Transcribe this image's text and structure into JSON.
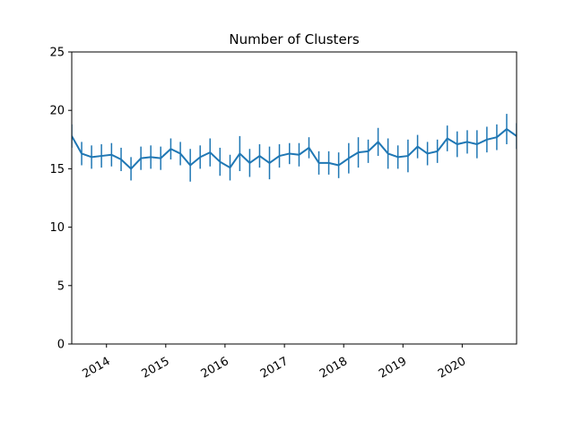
{
  "chart_data": {
    "type": "line",
    "title": "Number of Clusters",
    "xlabel": "",
    "ylabel": "",
    "x_axis": {
      "range": [
        "2013-06-01",
        "2020-12-01"
      ],
      "tick_labels": [
        "2014",
        "2015",
        "2016",
        "2017",
        "2018",
        "2019",
        "2020"
      ],
      "tick_dates": [
        "2014-01-01",
        "2015-01-01",
        "2016-01-01",
        "2017-01-01",
        "2018-01-01",
        "2019-01-01",
        "2020-01-01"
      ]
    },
    "y_axis": {
      "range": [
        0,
        25
      ],
      "tick_values": [
        0,
        5,
        10,
        15,
        20,
        25
      ],
      "tick_labels": [
        "0",
        "5",
        "10",
        "15",
        "20",
        "25"
      ]
    },
    "grid": false,
    "legend": "none",
    "series": [
      {
        "color": "#1f77b4",
        "x": [
          "2013-06",
          "2013-08",
          "2013-10",
          "2013-12",
          "2014-02",
          "2014-04",
          "2014-06",
          "2014-08",
          "2014-10",
          "2014-12",
          "2015-02",
          "2015-04",
          "2015-06",
          "2015-08",
          "2015-10",
          "2015-12",
          "2016-02",
          "2016-04",
          "2016-06",
          "2016-08",
          "2016-10",
          "2016-12",
          "2017-02",
          "2017-04",
          "2017-06",
          "2017-08",
          "2017-10",
          "2017-12",
          "2018-02",
          "2018-04",
          "2018-06",
          "2018-08",
          "2018-10",
          "2018-12",
          "2019-02",
          "2019-04",
          "2019-06",
          "2019-08",
          "2019-10",
          "2019-12",
          "2020-02",
          "2020-04",
          "2020-06",
          "2020-08",
          "2020-10",
          "2020-12"
        ],
        "y": [
          17.8,
          16.3,
          16.0,
          16.1,
          16.2,
          15.8,
          15.0,
          15.9,
          16.0,
          15.9,
          16.7,
          16.3,
          15.3,
          16.0,
          16.4,
          15.6,
          15.1,
          16.3,
          15.5,
          16.1,
          15.5,
          16.1,
          16.3,
          16.2,
          16.8,
          15.5,
          15.5,
          15.3,
          15.9,
          16.4,
          16.5,
          17.3,
          16.3,
          16.0,
          16.1,
          16.9,
          16.3,
          16.5,
          17.6,
          17.1,
          17.3,
          17.1,
          17.5,
          17.7,
          18.4,
          17.8
        ],
        "yerr": [
          1.0,
          1.0,
          1.0,
          1.0,
          1.0,
          1.0,
          1.0,
          1.0,
          1.0,
          1.0,
          0.9,
          1.0,
          1.4,
          1.0,
          1.2,
          1.2,
          1.1,
          1.5,
          1.2,
          1.0,
          1.4,
          1.0,
          0.9,
          1.0,
          0.9,
          1.0,
          1.0,
          1.1,
          1.3,
          1.3,
          1.0,
          1.2,
          1.3,
          1.0,
          1.4,
          1.0,
          1.0,
          1.0,
          1.1,
          1.1,
          1.0,
          1.2,
          1.1,
          1.1,
          1.3,
          1.1
        ]
      }
    ]
  }
}
